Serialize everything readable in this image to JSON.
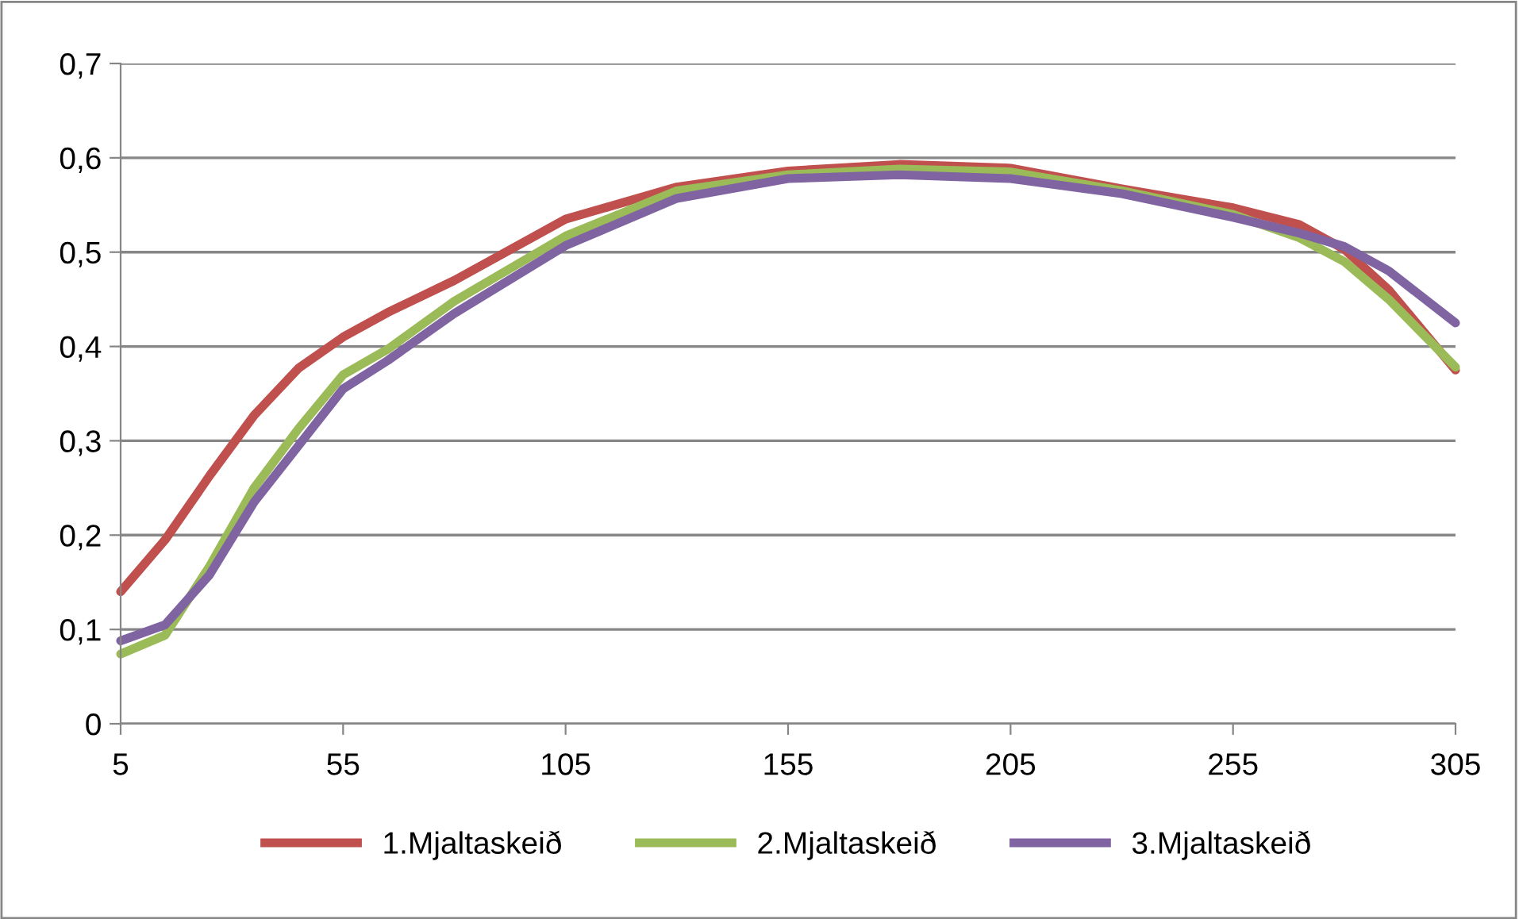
{
  "chart_data": {
    "type": "line",
    "x": [
      5,
      15,
      25,
      35,
      45,
      55,
      65,
      80,
      105,
      130,
      155,
      180,
      205,
      230,
      255,
      270,
      280,
      290,
      305
    ],
    "series": [
      {
        "name": "1.Mjaltaskeið",
        "color": "#c0504d",
        "values": [
          0.14,
          0.195,
          0.263,
          0.327,
          0.377,
          0.41,
          0.436,
          0.47,
          0.535,
          0.569,
          0.586,
          0.593,
          0.589,
          0.567,
          0.547,
          0.529,
          0.503,
          0.46,
          0.375
        ]
      },
      {
        "name": "2.Mjaltaskeið",
        "color": "#9bbb59",
        "values": [
          0.074,
          0.094,
          0.167,
          0.25,
          0.313,
          0.37,
          0.397,
          0.448,
          0.517,
          0.565,
          0.582,
          0.588,
          0.585,
          0.565,
          0.54,
          0.515,
          0.49,
          0.45,
          0.378
        ]
      },
      {
        "name": "3.Mjaltaskeið",
        "color": "#8064a2",
        "values": [
          0.088,
          0.105,
          0.158,
          0.235,
          0.295,
          0.355,
          0.385,
          0.435,
          0.507,
          0.557,
          0.578,
          0.582,
          0.578,
          0.562,
          0.537,
          0.52,
          0.506,
          0.48,
          0.425
        ]
      }
    ],
    "xlim": [
      5,
      305
    ],
    "xticks": [
      5,
      55,
      105,
      155,
      205,
      255,
      305
    ],
    "ylim": [
      0,
      0.7
    ],
    "yticks": [
      {
        "value": 0,
        "label": "0"
      },
      {
        "value": 0.1,
        "label": "0,1"
      },
      {
        "value": 0.2,
        "label": "0,2"
      },
      {
        "value": 0.3,
        "label": "0,3"
      },
      {
        "value": 0.4,
        "label": "0,4"
      },
      {
        "value": 0.5,
        "label": "0,5"
      },
      {
        "value": 0.6,
        "label": "0,6"
      },
      {
        "value": 0.7,
        "label": "0,7"
      }
    ],
    "grid": "y",
    "legend": "bottom",
    "marker": "none",
    "line_style": "solid"
  }
}
